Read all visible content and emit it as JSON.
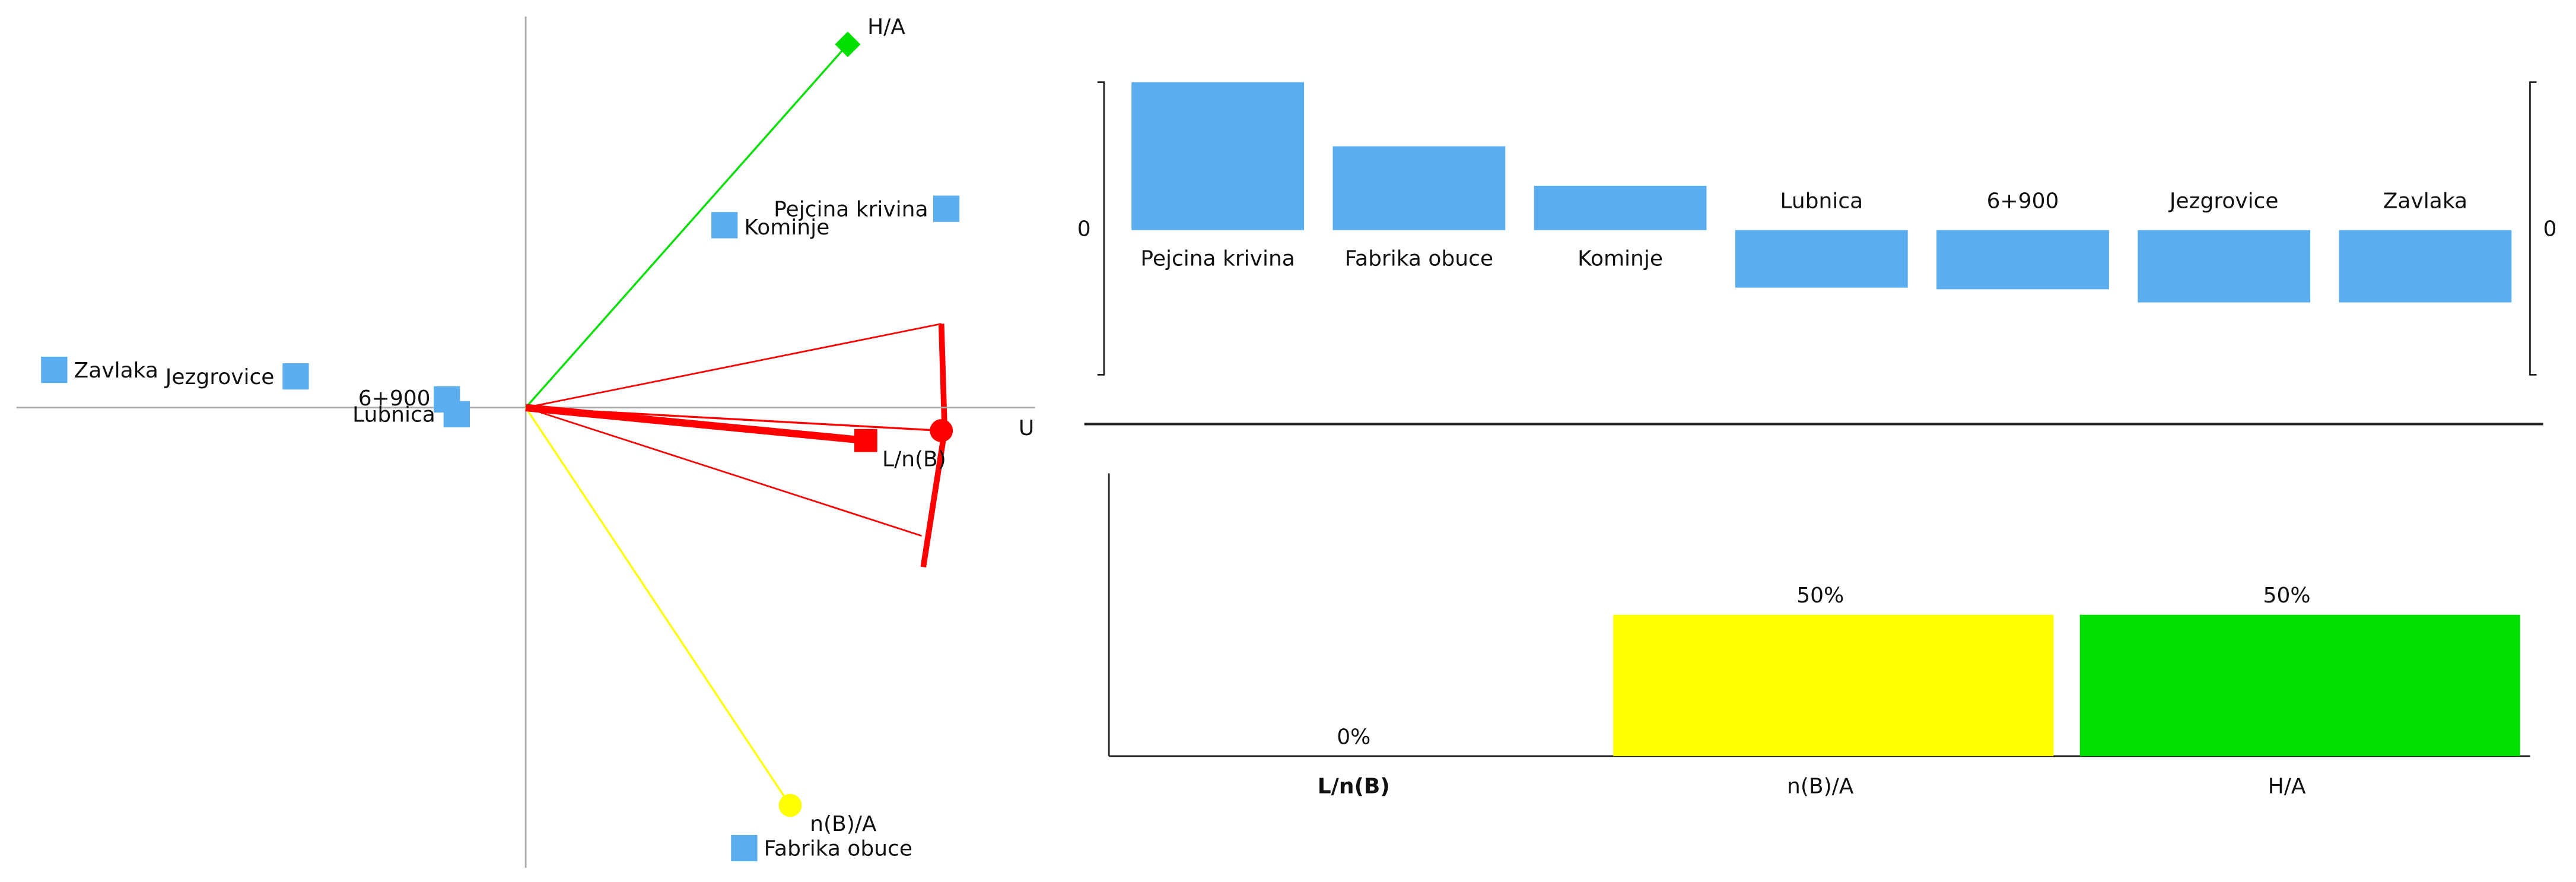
{
  "chart_data": [
    {
      "type": "gaia",
      "x_label": "U",
      "xlim": [
        -3.1,
        3.1
      ],
      "ylim": [
        -2.8,
        2.38
      ],
      "axis_color": "#aaaaaa",
      "alternatives": {
        "labels": [
          "Pejcina krivina",
          "Kominje",
          "Zavlaka",
          "Jezgrovice",
          "Lubnica",
          "6+900",
          "Fabrika obuce"
        ],
        "x": [
          2.56,
          1.21,
          -2.87,
          -1.4,
          -0.42,
          -0.48,
          1.33
        ],
        "y": [
          1.21,
          1.11,
          0.23,
          0.19,
          -0.04,
          0.05,
          -2.68
        ],
        "color": "#5aaef0"
      },
      "criteria": [
        {
          "name": "H/A",
          "color": "#00e000",
          "marker": "diamond",
          "x": 1.96,
          "y": 2.21
        },
        {
          "name": "n(B)/A",
          "color": "#ffff00",
          "marker": "circle",
          "x": 1.61,
          "y": -2.42
        },
        {
          "name": "L/n(B)",
          "color": "#ff0000",
          "marker": "circle",
          "x": 2.53,
          "y": -0.14
        }
      ],
      "decision_axis": {
        "x": 2.07,
        "y": -0.2,
        "color": "#ff0000"
      }
    },
    {
      "type": "bar",
      "categories": [
        "Pejcina krivina",
        "Fabrika obuce",
        "Kominje",
        "Lubnica",
        "6+900",
        "Jezgrovice",
        "Zavlaka"
      ],
      "values": [
        0.9,
        0.51,
        0.27,
        -0.35,
        -0.36,
        -0.44,
        -0.44
      ],
      "color": "#5aaef0",
      "ylim": [
        -0.88,
        0.9
      ],
      "yticks": [
        0
      ]
    },
    {
      "type": "bar",
      "categories": [
        "L/n(B)",
        "n(B)/A",
        "H/A"
      ],
      "values": [
        0,
        50,
        50
      ],
      "value_labels": [
        "0%",
        "50%",
        "50%"
      ],
      "colors": [
        "#ff0000",
        "#ffff00",
        "#00e000"
      ],
      "ylim": [
        0,
        100
      ]
    }
  ]
}
